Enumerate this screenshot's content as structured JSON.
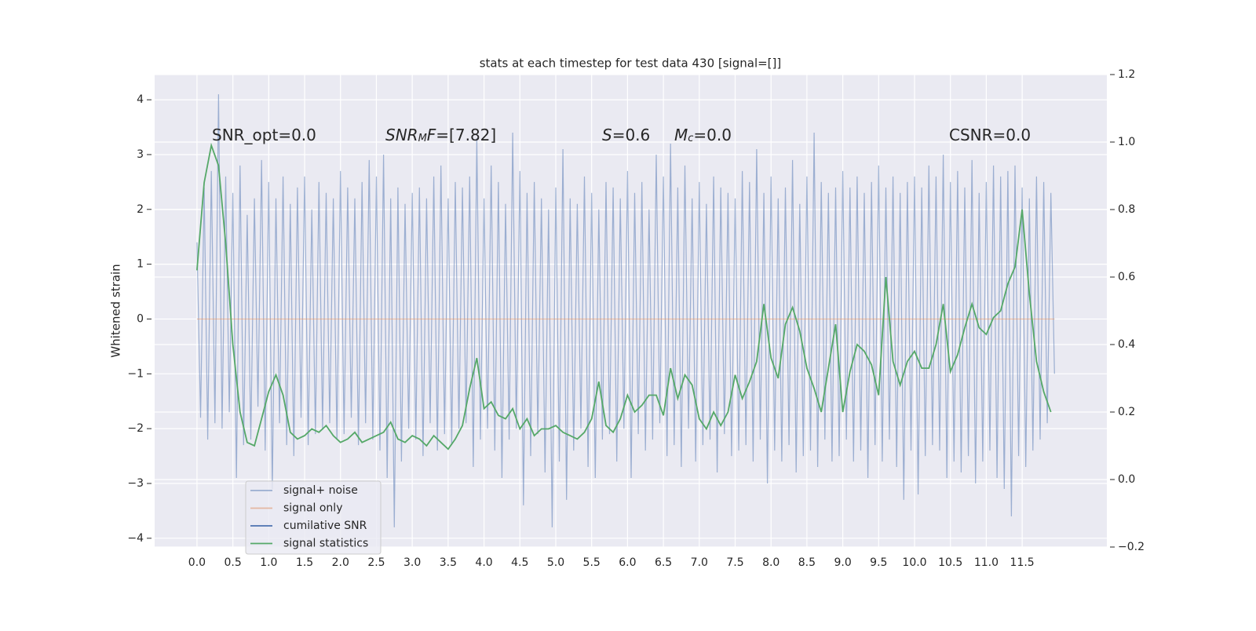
{
  "chart_data": {
    "type": "line",
    "title": "stats at each timestep for test data 430 [signal=[]]",
    "ylabel": "Whitened strain",
    "xlim": [
      -0.59,
      12.68
    ],
    "ylim": [
      -4.16,
      4.46
    ],
    "y2lim": [
      -0.2,
      1.2
    ],
    "grid": true,
    "legend": "lower left",
    "xticks": [
      {
        "value": 0,
        "label": "0.0"
      },
      0.5,
      {
        "value": 1,
        "label": "1.0"
      },
      1.5,
      {
        "value": 2,
        "label": "2.0"
      },
      2.5,
      {
        "value": 3,
        "label": "3.0"
      },
      3.5,
      {
        "value": 4,
        "label": "4.0"
      },
      4.5,
      {
        "value": 5,
        "label": "5.0"
      },
      5.5,
      {
        "value": 6,
        "label": "6.0"
      },
      6.5,
      {
        "value": 7,
        "label": "7.0"
      },
      7.5,
      {
        "value": 8,
        "label": "8.0"
      },
      8.5,
      {
        "value": 9,
        "label": "9.0"
      },
      9.5,
      {
        "value": 10,
        "label": "10.0"
      },
      10.5,
      {
        "value": 11,
        "label": "11.0"
      },
      11.5
    ],
    "yticks": [
      {
        "value": -4,
        "label": "−4"
      },
      {
        "value": -3,
        "label": "−3"
      },
      {
        "value": -2,
        "label": "−2"
      },
      {
        "value": -1,
        "label": "−1"
      },
      0,
      1,
      2,
      3,
      4
    ],
    "y2ticks": [
      {
        "value": -0.2,
        "label": "−0.2"
      },
      {
        "value": 0,
        "label": "0.0"
      },
      0.2,
      0.4,
      0.6,
      0.8,
      {
        "value": 1,
        "label": "1.0"
      },
      1.2
    ],
    "annotations": [
      [
        "SNR_opt=0.0"
      ],
      [
        "SNR",
        "M",
        "F",
        "=[7.82]"
      ],
      [
        "S",
        "=0.6"
      ],
      [
        "M",
        "c",
        "=0.0"
      ],
      [
        "CSNR=0.0"
      ]
    ],
    "series": [
      {
        "name": "signal+ noise",
        "color": "#4c72b0",
        "alpha": 0.5,
        "x": [
          0,
          0.05,
          0.1,
          0.15,
          0.2,
          0.25,
          0.3,
          0.35,
          0.4,
          0.45,
          0.5,
          0.55,
          0.6,
          0.65,
          0.7,
          0.75,
          0.8,
          0.85,
          0.9,
          0.95,
          1,
          1.05,
          1.1,
          1.15,
          1.2,
          1.25,
          1.3,
          1.35,
          1.4,
          1.45,
          1.5,
          1.55,
          1.6,
          1.65,
          1.7,
          1.75,
          1.8,
          1.85,
          1.9,
          1.95,
          2,
          2.05,
          2.1,
          2.15,
          2.2,
          2.25,
          2.3,
          2.35,
          2.4,
          2.45,
          2.5,
          2.55,
          2.6,
          2.65,
          2.7,
          2.75,
          2.8,
          2.85,
          2.9,
          2.95,
          3,
          3.05,
          3.1,
          3.15,
          3.2,
          3.25,
          3.3,
          3.35,
          3.4,
          3.45,
          3.5,
          3.55,
          3.6,
          3.65,
          3.7,
          3.75,
          3.8,
          3.85,
          3.9,
          3.95,
          4,
          4.05,
          4.1,
          4.15,
          4.2,
          4.25,
          4.3,
          4.35,
          4.4,
          4.45,
          4.5,
          4.55,
          4.6,
          4.65,
          4.7,
          4.75,
          4.8,
          4.85,
          4.9,
          4.95,
          5,
          5.05,
          5.1,
          5.15,
          5.2,
          5.25,
          5.3,
          5.35,
          5.4,
          5.45,
          5.5,
          5.55,
          5.6,
          5.65,
          5.7,
          5.75,
          5.8,
          5.85,
          5.9,
          5.95,
          6,
          6.05,
          6.1,
          6.15,
          6.2,
          6.25,
          6.3,
          6.35,
          6.4,
          6.45,
          6.5,
          6.55,
          6.6,
          6.65,
          6.7,
          6.75,
          6.8,
          6.85,
          6.9,
          6.95,
          7,
          7.05,
          7.1,
          7.15,
          7.2,
          7.25,
          7.3,
          7.35,
          7.4,
          7.45,
          7.5,
          7.55,
          7.6,
          7.65,
          7.7,
          7.75,
          7.8,
          7.85,
          7.9,
          7.95,
          8,
          8.05,
          8.1,
          8.15,
          8.2,
          8.25,
          8.3,
          8.35,
          8.4,
          8.45,
          8.5,
          8.55,
          8.6,
          8.65,
          8.7,
          8.75,
          8.8,
          8.85,
          8.9,
          8.95,
          9,
          9.05,
          9.1,
          9.15,
          9.2,
          9.25,
          9.3,
          9.35,
          9.4,
          9.45,
          9.5,
          9.55,
          9.6,
          9.65,
          9.7,
          9.75,
          9.8,
          9.85,
          9.9,
          9.95,
          10,
          10.05,
          10.1,
          10.15,
          10.2,
          10.25,
          10.3,
          10.35,
          10.4,
          10.45,
          10.5,
          10.55,
          10.6,
          10.65,
          10.7,
          10.75,
          10.8,
          10.85,
          10.9,
          10.95,
          11,
          11.05,
          11.1,
          11.15,
          11.2,
          11.25,
          11.3,
          11.35,
          11.4,
          11.45,
          11.5,
          11.55,
          11.6,
          11.65,
          11.7,
          11.75,
          11.8,
          11.85,
          11.9,
          11.95
        ],
        "values": [
          1.4,
          -1.8,
          2.4,
          -2.2,
          2.7,
          -1.9,
          4.1,
          -2.0,
          2.6,
          -1.7,
          2.3,
          -2.9,
          2.8,
          -2.3,
          1.9,
          -2.2,
          2.2,
          -1.6,
          2.9,
          -2.4,
          2.5,
          -3.1,
          2.2,
          -1.9,
          2.6,
          -2.3,
          2.1,
          -2.5,
          2.4,
          -1.8,
          2.6,
          -2.3,
          2.0,
          -2.1,
          2.5,
          -2.0,
          2.3,
          -1.9,
          2.2,
          -2.2,
          2.7,
          -2.1,
          2.4,
          -1.8,
          2.2,
          -2.3,
          2.5,
          -1.9,
          2.9,
          -2.2,
          2.6,
          -2.4,
          3.0,
          -2.9,
          2.2,
          -3.8,
          2.4,
          -2.6,
          2.1,
          -2.0,
          2.3,
          -2.2,
          2.4,
          -2.5,
          2.2,
          -1.9,
          2.6,
          -2.4,
          2.8,
          -2.1,
          2.2,
          -2.3,
          2.5,
          -2.0,
          2.4,
          -1.9,
          2.6,
          -2.7,
          3.3,
          -2.2,
          2.2,
          -2.0,
          2.8,
          -2.4,
          2.5,
          -2.9,
          2.1,
          -2.2,
          3.4,
          -2.0,
          2.7,
          -3.4,
          2.3,
          -2.5,
          2.5,
          -2.1,
          2.2,
          -2.8,
          2.0,
          -3.8,
          2.4,
          -2.6,
          3.1,
          -3.3,
          2.2,
          -2.4,
          2.1,
          -2.0,
          2.6,
          -2.7,
          2.3,
          -2.9,
          2.0,
          -2.2,
          2.5,
          -2.1,
          2.4,
          -2.6,
          2.2,
          -2.0,
          2.7,
          -2.9,
          2.3,
          -2.1,
          2.5,
          -2.4,
          2.0,
          -2.2,
          3.0,
          -1.9,
          2.6,
          -2.5,
          3.2,
          -2.3,
          2.4,
          -2.7,
          2.8,
          -2.0,
          2.2,
          -2.6,
          2.5,
          -2.3,
          2.1,
          -2.2,
          2.6,
          -2.8,
          2.4,
          -2.1,
          2.3,
          -2.5,
          2.2,
          -2.4,
          2.7,
          -2.3,
          2.5,
          -2.6,
          3.1,
          -2.2,
          2.3,
          -3.0,
          2.6,
          -2.4,
          2.2,
          -2.6,
          2.4,
          -2.3,
          2.9,
          -2.8,
          2.1,
          -2.5,
          2.6,
          -2.4,
          3.4,
          -2.7,
          2.5,
          -2.2,
          2.3,
          -2.6,
          2.4,
          -2.5,
          2.7,
          -2.2,
          2.4,
          -2.6,
          2.6,
          -2.4,
          2.3,
          -2.9,
          2.5,
          -2.3,
          2.8,
          -2.6,
          2.4,
          -2.2,
          2.6,
          -2.7,
          2.3,
          -3.3,
          2.5,
          -2.4,
          2.6,
          -3.2,
          2.4,
          -2.5,
          2.8,
          -2.3,
          2.6,
          -2.4,
          3.0,
          -2.9,
          2.5,
          -2.6,
          2.7,
          -2.8,
          2.4,
          -2.5,
          2.9,
          -3.0,
          2.3,
          -2.6,
          2.5,
          -2.4,
          2.8,
          -2.9,
          2.6,
          -3.1,
          2.7,
          -3.6,
          2.8,
          -2.5,
          2.4,
          -2.7,
          2.2,
          -2.4,
          2.6,
          -2.2,
          2.5,
          -1.9,
          2.3,
          -1.0
        ]
      },
      {
        "name": "signal only",
        "color": "#dd8452",
        "alpha": 0.5,
        "x": [
          0,
          11.95
        ],
        "values": [
          0,
          0
        ]
      },
      {
        "name": "cumilative SNR",
        "color": "#4c72b0",
        "alpha": 1,
        "x": [],
        "values": []
      },
      {
        "name": "signal statistics",
        "color": "#55a868",
        "alpha": 1,
        "axis": "y2",
        "x": [
          0,
          0.1,
          0.2,
          0.3,
          0.4,
          0.5,
          0.6,
          0.7,
          0.8,
          0.9,
          1,
          1.1,
          1.2,
          1.3,
          1.4,
          1.5,
          1.6,
          1.7,
          1.8,
          1.9,
          2,
          2.1,
          2.2,
          2.3,
          2.4,
          2.5,
          2.6,
          2.7,
          2.8,
          2.9,
          3,
          3.1,
          3.2,
          3.3,
          3.4,
          3.5,
          3.6,
          3.7,
          3.8,
          3.9,
          4,
          4.1,
          4.2,
          4.3,
          4.4,
          4.5,
          4.6,
          4.7,
          4.8,
          4.9,
          5,
          5.1,
          5.2,
          5.3,
          5.4,
          5.5,
          5.6,
          5.7,
          5.8,
          5.9,
          6,
          6.1,
          6.2,
          6.3,
          6.4,
          6.5,
          6.6,
          6.7,
          6.8,
          6.9,
          7,
          7.1,
          7.2,
          7.3,
          7.4,
          7.5,
          7.6,
          7.7,
          7.8,
          7.9,
          8,
          8.1,
          8.2,
          8.3,
          8.4,
          8.5,
          8.6,
          8.7,
          8.8,
          8.9,
          9,
          9.1,
          9.2,
          9.3,
          9.4,
          9.5,
          9.6,
          9.7,
          9.8,
          9.9,
          10,
          10.1,
          10.2,
          10.3,
          10.4,
          10.5,
          10.6,
          10.7,
          10.8,
          10.9,
          11,
          11.1,
          11.2,
          11.3,
          11.4,
          11.5,
          11.6,
          11.7,
          11.8,
          11.9
        ],
        "values": [
          0.62,
          0.88,
          0.99,
          0.93,
          0.7,
          0.4,
          0.2,
          0.11,
          0.1,
          0.18,
          0.26,
          0.31,
          0.25,
          0.14,
          0.12,
          0.13,
          0.15,
          0.14,
          0.16,
          0.13,
          0.11,
          0.12,
          0.14,
          0.11,
          0.12,
          0.13,
          0.14,
          0.17,
          0.12,
          0.11,
          0.13,
          0.12,
          0.1,
          0.13,
          0.11,
          0.09,
          0.12,
          0.16,
          0.27,
          0.36,
          0.21,
          0.23,
          0.19,
          0.18,
          0.21,
          0.15,
          0.18,
          0.13,
          0.15,
          0.15,
          0.16,
          0.14,
          0.13,
          0.12,
          0.14,
          0.18,
          0.29,
          0.16,
          0.14,
          0.18,
          0.25,
          0.2,
          0.22,
          0.25,
          0.25,
          0.19,
          0.33,
          0.24,
          0.31,
          0.28,
          0.18,
          0.15,
          0.2,
          0.16,
          0.2,
          0.31,
          0.24,
          0.29,
          0.35,
          0.52,
          0.36,
          0.3,
          0.46,
          0.51,
          0.44,
          0.33,
          0.27,
          0.2,
          0.33,
          0.46,
          0.2,
          0.32,
          0.4,
          0.38,
          0.34,
          0.25,
          0.6,
          0.35,
          0.28,
          0.35,
          0.38,
          0.33,
          0.33,
          0.4,
          0.52,
          0.32,
          0.37,
          0.45,
          0.52,
          0.45,
          0.43,
          0.48,
          0.5,
          0.58,
          0.63,
          0.8,
          0.55,
          0.35,
          0.26,
          0.2
        ]
      }
    ]
  }
}
